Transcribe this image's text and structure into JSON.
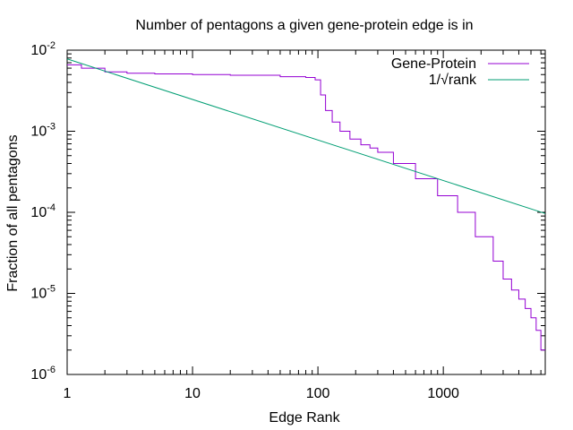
{
  "chart_data": {
    "type": "line",
    "title": "Number of pentagons a given gene-protein edge is in",
    "xlabel": "Edge Rank",
    "ylabel": "Fraction of all pentagons",
    "xscale": "log",
    "yscale": "log",
    "xlim": [
      1,
      6500
    ],
    "ylim": [
      1e-06,
      0.01
    ],
    "x_ticks": [
      {
        "value": 1,
        "label": "1"
      },
      {
        "value": 10,
        "label": "10"
      },
      {
        "value": 100,
        "label": "100"
      },
      {
        "value": 1000,
        "label": "1000"
      }
    ],
    "y_ticks": [
      {
        "value": 1e-06,
        "base": "10",
        "exp": "-6"
      },
      {
        "value": 1e-05,
        "base": "10",
        "exp": "-5"
      },
      {
        "value": 0.0001,
        "base": "10",
        "exp": "-4"
      },
      {
        "value": 0.001,
        "base": "10",
        "exp": "-3"
      },
      {
        "value": 0.01,
        "base": "10",
        "exp": "-2"
      }
    ],
    "grid": false,
    "legend_position": "top-right",
    "series": [
      {
        "name": "Gene-Protein",
        "color": "#9400d3",
        "style": "steps",
        "x": [
          1,
          1.3,
          2,
          3,
          5,
          10,
          20,
          50,
          80,
          95,
          105,
          115,
          130,
          150,
          180,
          220,
          260,
          300,
          400,
          600,
          900,
          1300,
          1800,
          2500,
          3000,
          3500,
          4000,
          4500,
          5000,
          5500,
          6000,
          6500
        ],
        "y": [
          0.0066,
          0.006,
          0.0054,
          0.0052,
          0.0051,
          0.005,
          0.0049,
          0.0047,
          0.0046,
          0.0043,
          0.0028,
          0.0018,
          0.0013,
          0.001,
          0.0008,
          0.00068,
          0.00062,
          0.00055,
          0.0004,
          0.00026,
          0.00016,
          0.0001,
          5e-05,
          2.5e-05,
          1.5e-05,
          1.1e-05,
          8.5e-06,
          6.5e-06,
          5e-06,
          3.5e-06,
          2e-06,
          2e-06
        ]
      },
      {
        "name": "1/√rank",
        "color": "#009e73",
        "style": "line",
        "x": [
          1,
          6500
        ],
        "y": [
          0.0078,
          9.67e-05
        ]
      }
    ]
  }
}
